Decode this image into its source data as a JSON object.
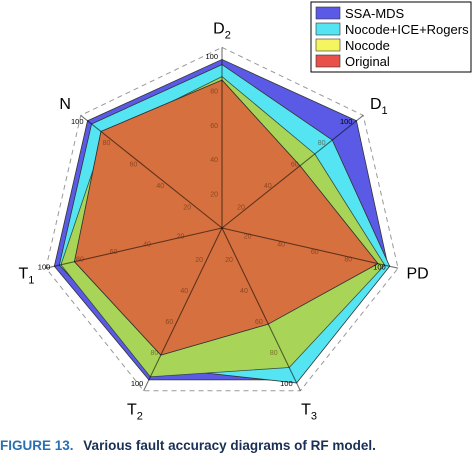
{
  "chart_data": {
    "type": "radar",
    "axes": [
      {
        "label": "D",
        "sub": "2"
      },
      {
        "label": "D",
        "sub": "1"
      },
      {
        "label": "PD",
        "sub": ""
      },
      {
        "label": "T",
        "sub": "3"
      },
      {
        "label": "T",
        "sub": "2"
      },
      {
        "label": "T",
        "sub": "1"
      },
      {
        "label": "N",
        "sub": ""
      }
    ],
    "rmax": 100,
    "tick_values": [
      20,
      40,
      60,
      80,
      100
    ],
    "tick_labels": [
      "20",
      "40",
      "60",
      "80",
      "100"
    ],
    "series": [
      {
        "name": "SSA-MDS",
        "color": "#5a5ae6",
        "values": [
          98,
          100,
          99,
          98,
          98,
          100,
          100
        ]
      },
      {
        "name": "Nocode+ICE+Rogers",
        "color": "#55e4f2",
        "values": [
          95,
          82,
          100,
          100,
          90,
          97,
          97
        ]
      },
      {
        "name": "Nocode",
        "color": "#f5f560",
        "values": [
          88,
          69,
          97,
          90,
          96,
          96,
          87
        ]
      },
      {
        "name": "Original",
        "color": "#e8504a",
        "values": [
          86,
          58,
          93,
          62,
          82,
          88,
          90
        ]
      }
    ],
    "green_overlay": {
      "color": "#4caf50",
      "opacity": 0.45
    },
    "grid": {
      "outer_polygon_dashed": true,
      "spokes": true
    },
    "legend_position": "top-right"
  },
  "caption": {
    "figure_number": "FIGURE 13.",
    "text": "Various fault accuracy diagrams of RF model."
  }
}
